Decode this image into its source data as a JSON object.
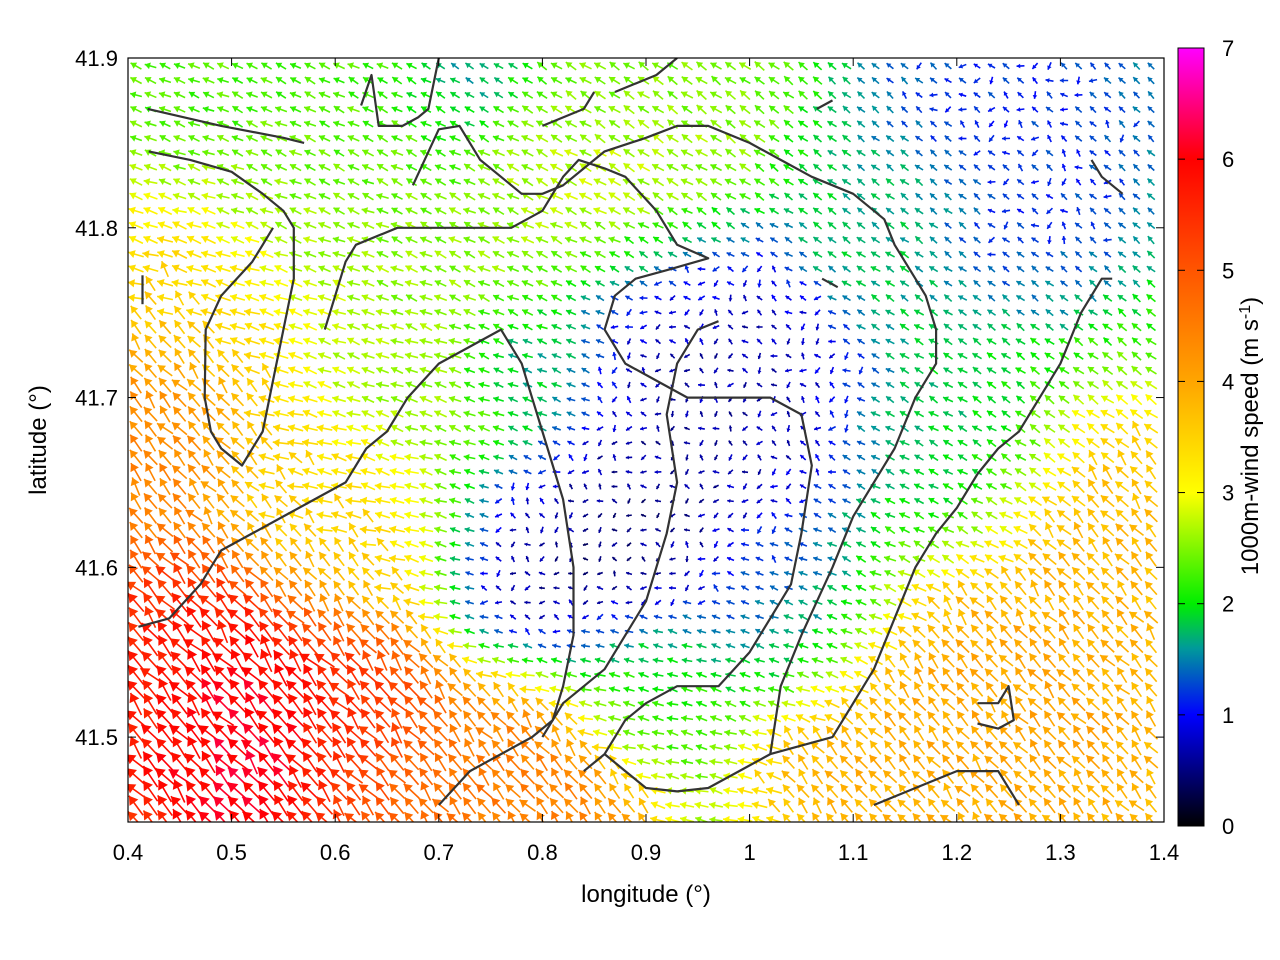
{
  "chart_data": {
    "type": "vector-field",
    "xlabel": "longitude (°)",
    "ylabel": "latitude (°)",
    "xlim": [
      0.4,
      1.4
    ],
    "ylim": [
      41.45,
      41.9
    ],
    "x_ticks": [
      0.4,
      0.5,
      0.6,
      0.7,
      0.8,
      0.9,
      1.0,
      1.1,
      1.2,
      1.3,
      1.4
    ],
    "x_tick_labels": [
      "0.4",
      "0.5",
      "0.6",
      "0.7",
      "0.8",
      "0.9",
      "1",
      "1.1",
      "1.2",
      "1.3",
      "1.4"
    ],
    "y_ticks": [
      41.5,
      41.6,
      41.7,
      41.8,
      41.9
    ],
    "y_tick_labels": [
      "41.5",
      "41.6",
      "41.7",
      "41.8",
      "41.9"
    ],
    "colorbar": {
      "label_main": "1000m-wind speed (m s",
      "label_sup": "-1",
      "label_end": ")",
      "range": [
        0,
        7
      ],
      "ticks": [
        0,
        1,
        2,
        3,
        4,
        5,
        6,
        7
      ],
      "tick_labels": [
        "0",
        "1",
        "2",
        "3",
        "4",
        "5",
        "6",
        "7"
      ],
      "stops": [
        {
          "v": 0,
          "color": "#000000"
        },
        {
          "v": 1,
          "color": "#0000ff"
        },
        {
          "v": 1.6,
          "color": "#009a9a"
        },
        {
          "v": 2,
          "color": "#00ee00"
        },
        {
          "v": 3,
          "color": "#ffff00"
        },
        {
          "v": 4,
          "color": "#ffa500"
        },
        {
          "v": 5,
          "color": "#ff5500"
        },
        {
          "v": 6,
          "color": "#ff0000"
        },
        {
          "v": 7,
          "color": "#ff00ff"
        }
      ]
    },
    "speed_regions": [
      {
        "lon": 0.52,
        "lat": 41.51,
        "speed": 6.6,
        "radius": 0.1
      },
      {
        "lon": 0.45,
        "lat": 41.53,
        "speed": 5.6,
        "radius": 0.09
      },
      {
        "lon": 0.62,
        "lat": 41.5,
        "speed": 5.2,
        "radius": 0.07
      },
      {
        "lon": 0.42,
        "lat": 41.68,
        "speed": 4.6,
        "radius": 0.07
      },
      {
        "lon": 0.48,
        "lat": 41.74,
        "speed": 3.6,
        "radius": 0.09
      },
      {
        "lon": 0.78,
        "lat": 41.47,
        "speed": 4.6,
        "radius": 0.08
      },
      {
        "lon": 0.68,
        "lat": 41.47,
        "speed": 4.8,
        "radius": 0.05
      },
      {
        "lon": 0.6,
        "lat": 41.62,
        "speed": 3.5,
        "radius": 0.08
      },
      {
        "lon": 1.25,
        "lat": 41.52,
        "speed": 4.1,
        "radius": 0.13
      },
      {
        "lon": 1.35,
        "lat": 41.6,
        "speed": 3.8,
        "radius": 0.09
      },
      {
        "lon": 1.15,
        "lat": 41.48,
        "speed": 3.9,
        "radius": 0.09
      },
      {
        "lon": 0.88,
        "lat": 41.82,
        "speed": 3.0,
        "radius": 0.08
      },
      {
        "lon": 0.72,
        "lat": 41.71,
        "speed": 2.6,
        "radius": 0.09
      },
      {
        "lon": 0.6,
        "lat": 41.78,
        "speed": 2.6,
        "radius": 0.09
      },
      {
        "lon": 0.6,
        "lat": 41.88,
        "speed": 2.3,
        "radius": 0.12
      },
      {
        "lon": 0.88,
        "lat": 41.88,
        "speed": 2.4,
        "radius": 0.09
      },
      {
        "lon": 0.93,
        "lat": 41.75,
        "speed": 0.6,
        "radius": 0.08
      },
      {
        "lon": 0.85,
        "lat": 41.62,
        "speed": 0.4,
        "radius": 0.1
      },
      {
        "lon": 1.0,
        "lat": 41.68,
        "speed": 0.6,
        "radius": 0.09
      },
      {
        "lon": 1.05,
        "lat": 41.58,
        "speed": 1.4,
        "radius": 0.07
      },
      {
        "lon": 0.77,
        "lat": 41.72,
        "speed": 1.3,
        "radius": 0.04
      },
      {
        "lon": 1.18,
        "lat": 41.66,
        "speed": 1.8,
        "radius": 0.08
      },
      {
        "lon": 1.25,
        "lat": 41.85,
        "speed": 1.1,
        "radius": 0.1
      },
      {
        "lon": 1.13,
        "lat": 41.81,
        "speed": 1.8,
        "radius": 0.06
      },
      {
        "lon": 0.72,
        "lat": 41.9,
        "speed": 1.3,
        "radius": 0.05
      },
      {
        "lon": 0.9,
        "lat": 41.53,
        "speed": 2.2,
        "radius": 0.06
      }
    ],
    "terrain_contours": [
      [
        [
          0.419,
          41.87
        ],
        [
          0.49,
          41.86
        ],
        [
          0.55,
          41.853
        ],
        [
          0.57,
          41.85
        ]
      ],
      [
        [
          0.42,
          41.845
        ],
        [
          0.46,
          41.84
        ],
        [
          0.5,
          41.833
        ],
        [
          0.53,
          41.82
        ],
        [
          0.55,
          41.81
        ],
        [
          0.56,
          41.8
        ],
        [
          0.56,
          41.77
        ],
        [
          0.55,
          41.74
        ],
        [
          0.54,
          41.71
        ],
        [
          0.53,
          41.68
        ],
        [
          0.51,
          41.66
        ],
        [
          0.49,
          41.67
        ],
        [
          0.48,
          41.68
        ],
        [
          0.474,
          41.7
        ],
        [
          0.475,
          41.74
        ],
        [
          0.49,
          41.76
        ],
        [
          0.52,
          41.78
        ],
        [
          0.53,
          41.79
        ],
        [
          0.54,
          41.8
        ]
      ],
      [
        [
          0.625,
          41.872
        ],
        [
          0.635,
          41.89
        ],
        [
          0.642,
          41.86
        ],
        [
          0.665,
          41.86
        ],
        [
          0.68,
          41.865
        ],
        [
          0.69,
          41.87
        ],
        [
          0.7,
          41.9
        ]
      ],
      [
        [
          0.675,
          41.825
        ],
        [
          0.7,
          41.858
        ],
        [
          0.72,
          41.86
        ],
        [
          0.74,
          41.84
        ],
        [
          0.76,
          41.83
        ],
        [
          0.78,
          41.82
        ],
        [
          0.8,
          41.82
        ],
        [
          0.82,
          41.825
        ],
        [
          0.84,
          41.835
        ],
        [
          0.86,
          41.845
        ],
        [
          0.9,
          41.853
        ],
        [
          0.93,
          41.86
        ],
        [
          0.96,
          41.86
        ],
        [
          1.0,
          41.85
        ],
        [
          1.03,
          41.84
        ],
        [
          1.06,
          41.83
        ],
        [
          1.1,
          41.82
        ],
        [
          1.13,
          41.805
        ],
        [
          1.14,
          41.79
        ],
        [
          1.16,
          41.77
        ],
        [
          1.17,
          41.76
        ],
        [
          1.18,
          41.74
        ],
        [
          1.18,
          41.72
        ],
        [
          1.16,
          41.7
        ],
        [
          1.14,
          41.67
        ],
        [
          1.12,
          41.65
        ],
        [
          1.1,
          41.63
        ],
        [
          1.08,
          41.6
        ],
        [
          1.05,
          41.56
        ],
        [
          1.03,
          41.53
        ],
        [
          1.02,
          41.49
        ]
      ],
      [
        [
          0.59,
          41.74
        ],
        [
          0.6,
          41.76
        ],
        [
          0.61,
          41.78
        ],
        [
          0.62,
          41.79
        ],
        [
          0.66,
          41.8
        ],
        [
          0.7,
          41.8
        ],
        [
          0.74,
          41.8
        ],
        [
          0.77,
          41.8
        ],
        [
          0.8,
          41.81
        ],
        [
          0.82,
          41.83
        ],
        [
          0.835,
          41.84
        ],
        [
          0.86,
          41.835
        ],
        [
          0.88,
          41.83
        ],
        [
          0.91,
          41.81
        ],
        [
          0.93,
          41.79
        ],
        [
          0.96,
          41.782
        ],
        [
          0.92,
          41.775
        ],
        [
          0.89,
          41.77
        ],
        [
          0.87,
          41.76
        ],
        [
          0.86,
          41.74
        ],
        [
          0.88,
          41.72
        ],
        [
          0.91,
          41.71
        ],
        [
          0.94,
          41.7
        ],
        [
          0.98,
          41.7
        ],
        [
          1.02,
          41.7
        ],
        [
          1.05,
          41.69
        ],
        [
          1.06,
          41.66
        ],
        [
          1.05,
          41.62
        ],
        [
          1.04,
          41.59
        ],
        [
          1.02,
          41.57
        ],
        [
          1.0,
          41.55
        ],
        [
          0.97,
          41.53
        ],
        [
          0.93,
          41.53
        ],
        [
          0.9,
          41.52
        ],
        [
          0.88,
          41.51
        ],
        [
          0.86,
          41.49
        ],
        [
          0.84,
          41.48
        ]
      ],
      [
        [
          0.41,
          41.565
        ],
        [
          0.44,
          41.57
        ],
        [
          0.47,
          41.59
        ],
        [
          0.49,
          41.61
        ],
        [
          0.52,
          41.62
        ],
        [
          0.55,
          41.63
        ],
        [
          0.58,
          41.64
        ],
        [
          0.61,
          41.65
        ],
        [
          0.63,
          41.67
        ],
        [
          0.65,
          41.68
        ],
        [
          0.67,
          41.7
        ],
        [
          0.7,
          41.72
        ],
        [
          0.73,
          41.73
        ],
        [
          0.76,
          41.74
        ],
        [
          0.78,
          41.72
        ],
        [
          0.79,
          41.7
        ],
        [
          0.8,
          41.68
        ],
        [
          0.81,
          41.66
        ],
        [
          0.82,
          41.64
        ],
        [
          0.83,
          41.6
        ],
        [
          0.83,
          41.56
        ],
        [
          0.82,
          41.53
        ],
        [
          0.81,
          41.51
        ],
        [
          0.79,
          41.5
        ],
        [
          0.76,
          41.49
        ],
        [
          0.73,
          41.48
        ],
        [
          0.7,
          41.46
        ]
      ],
      [
        [
          0.8,
          41.5
        ],
        [
          0.82,
          41.52
        ],
        [
          0.86,
          41.54
        ],
        [
          0.88,
          41.56
        ],
        [
          0.9,
          41.58
        ],
        [
          0.92,
          41.62
        ],
        [
          0.93,
          41.65
        ],
        [
          0.92,
          41.69
        ],
        [
          0.93,
          41.72
        ],
        [
          0.95,
          41.74
        ],
        [
          0.97,
          41.745
        ]
      ],
      [
        [
          0.86,
          41.49
        ],
        [
          0.88,
          41.48
        ],
        [
          0.9,
          41.47
        ],
        [
          0.93,
          41.468
        ],
        [
          0.96,
          41.47
        ],
        [
          0.99,
          41.48
        ],
        [
          1.02,
          41.49
        ],
        [
          1.05,
          41.495
        ],
        [
          1.08,
          41.5
        ],
        [
          1.1,
          41.52
        ],
        [
          1.12,
          41.54
        ],
        [
          1.14,
          41.57
        ],
        [
          1.16,
          41.6
        ],
        [
          1.18,
          41.62
        ],
        [
          1.2,
          41.635
        ],
        [
          1.22,
          41.655
        ],
        [
          1.24,
          41.67
        ],
        [
          1.26,
          41.68
        ],
        [
          1.28,
          41.7
        ],
        [
          1.3,
          41.72
        ],
        [
          1.32,
          41.75
        ],
        [
          1.34,
          41.77
        ],
        [
          1.35,
          41.77
        ]
      ],
      [
        [
          1.33,
          41.84
        ],
        [
          1.34,
          41.83
        ],
        [
          1.36,
          41.82
        ]
      ],
      [
        [
          1.065,
          41.87
        ],
        [
          1.08,
          41.875
        ]
      ],
      [
        [
          0.87,
          41.88
        ],
        [
          0.91,
          41.89
        ],
        [
          0.93,
          41.9
        ]
      ],
      [
        [
          0.8,
          41.86
        ],
        [
          0.84,
          41.87
        ],
        [
          0.85,
          41.88
        ]
      ],
      [
        [
          1.12,
          41.46
        ],
        [
          1.16,
          41.47
        ],
        [
          1.2,
          41.48
        ],
        [
          1.24,
          41.48
        ],
        [
          1.26,
          41.46
        ]
      ],
      [
        [
          1.22,
          41.52
        ],
        [
          1.24,
          41.52
        ],
        [
          1.25,
          41.53
        ],
        [
          1.255,
          41.51
        ],
        [
          1.24,
          41.505
        ],
        [
          1.22,
          41.508
        ]
      ],
      [
        [
          0.414,
          41.755
        ],
        [
          0.414,
          41.772
        ]
      ],
      [
        [
          1.07,
          41.77
        ],
        [
          1.085,
          41.765
        ]
      ]
    ]
  }
}
